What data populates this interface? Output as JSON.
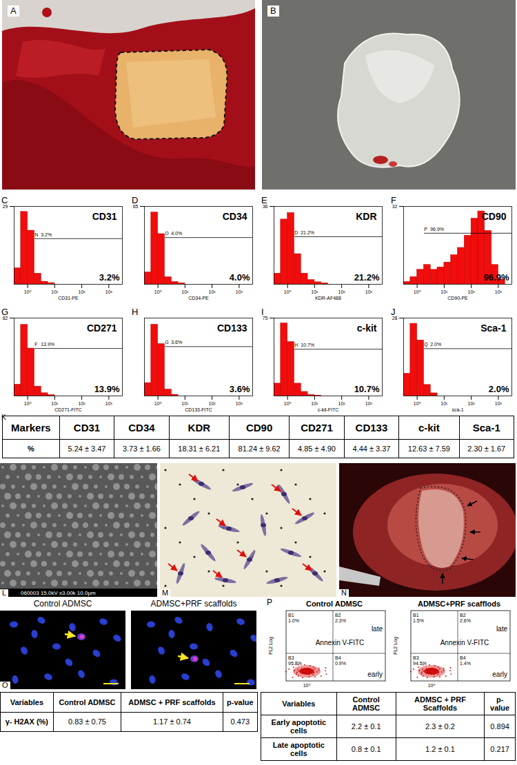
{
  "panels": {
    "A": "A",
    "B": "B",
    "K": "K"
  },
  "chart_data": [
    {
      "type": "histogram",
      "panel": "C",
      "title": "CD31",
      "x_label": "CD31-PE",
      "color": "#f20d0d",
      "log": "x",
      "xlim": [
        0.316,
        3162
      ],
      "xticks": [
        {
          "value": 1,
          "label": "10⁰"
        },
        {
          "value": 10,
          "label": "10¹"
        },
        {
          "value": 100,
          "label": "10²"
        },
        {
          "value": 1000,
          "label": "10³"
        }
      ],
      "ylim": [
        0,
        29
      ],
      "yticks": [
        29
      ],
      "bins": [
        0.316,
        0.562,
        1,
        1.78,
        3.16,
        5.62,
        10,
        17.8,
        31.6,
        56.2,
        100,
        178,
        316,
        562,
        1000,
        1780,
        3162
      ],
      "counts": [
        6,
        27,
        20,
        4,
        1,
        0.5,
        0,
        0,
        0,
        0,
        0,
        0,
        0,
        0,
        0,
        0
      ],
      "gate": {
        "name": "N",
        "label": "3.2%",
        "start": 1.8,
        "level": 17
      },
      "percent_label": "3.2%"
    },
    {
      "type": "histogram",
      "panel": "D",
      "title": "CD34",
      "x_label": "CD34-PE",
      "color": "#f20d0d",
      "log": "x",
      "xlim": [
        0.316,
        3162
      ],
      "xticks": [
        {
          "value": 1,
          "label": "10⁰"
        },
        {
          "value": 10,
          "label": "10¹"
        },
        {
          "value": 100,
          "label": "10²"
        },
        {
          "value": 1000,
          "label": "10³"
        }
      ],
      "ylim": [
        0,
        65
      ],
      "yticks": [
        65
      ],
      "bins": [
        0.316,
        0.562,
        1,
        1.78,
        3.16,
        5.62,
        10,
        17.8,
        31.6,
        56.2,
        100,
        178,
        316,
        562,
        1000,
        1780,
        3162
      ],
      "counts": [
        10,
        60,
        42,
        6,
        2,
        1,
        0,
        0,
        0,
        0,
        0,
        0,
        0,
        0,
        0,
        0
      ],
      "gate": {
        "name": "O",
        "label": "4.0%",
        "start": 1.8,
        "level": 39
      },
      "percent_label": "4.0%"
    },
    {
      "type": "histogram",
      "panel": "E",
      "title": "KDR",
      "x_label": "KDR-AF488",
      "color": "#f20d0d",
      "log": "x",
      "xlim": [
        0.316,
        3162
      ],
      "xticks": [
        {
          "value": 1,
          "label": "10⁰"
        },
        {
          "value": 10,
          "label": "10¹"
        },
        {
          "value": 100,
          "label": "10²"
        },
        {
          "value": 1000,
          "label": "10³"
        }
      ],
      "ylim": [
        0,
        36
      ],
      "yticks": [
        36
      ],
      "bins": [
        0.316,
        0.562,
        1,
        1.78,
        3.16,
        5.62,
        10,
        17.8,
        31.6,
        56.2,
        100,
        178,
        316,
        562,
        1000,
        1780,
        3162
      ],
      "counts": [
        5,
        30,
        33,
        14,
        5,
        2,
        1,
        0.5,
        0,
        0,
        0,
        0,
        0,
        0,
        0,
        0
      ],
      "gate": {
        "name": "D",
        "label": "21.2%",
        "start": 1.8,
        "level": 22
      },
      "percent_label": "21.2%"
    },
    {
      "type": "histogram",
      "panel": "F",
      "title": "CD90",
      "x_label": "CD90-PE",
      "color": "#f20d0d",
      "log": "x",
      "xlim": [
        0.316,
        3162
      ],
      "xticks": [
        {
          "value": 1,
          "label": "10⁰"
        },
        {
          "value": 10,
          "label": "10¹"
        },
        {
          "value": 100,
          "label": "10²"
        },
        {
          "value": 1000,
          "label": "10³"
        }
      ],
      "ylim": [
        0,
        32
      ],
      "yticks": [
        32
      ],
      "bins": [
        0.316,
        0.562,
        1,
        1.78,
        3.16,
        5.62,
        10,
        17.8,
        31.6,
        56.2,
        100,
        178,
        316,
        562,
        1000,
        1780,
        3162
      ],
      "counts": [
        1,
        3,
        6,
        8,
        6,
        7,
        9,
        12,
        15,
        20,
        27,
        30,
        22,
        8,
        2,
        0
      ],
      "gate": {
        "name": "P",
        "label": "96.9%",
        "start": 1.8,
        "level": 21
      },
      "percent_label": "96.9%"
    },
    {
      "type": "histogram",
      "panel": "G",
      "title": "CD271",
      "x_label": "CD271-FITC",
      "color": "#f20d0d",
      "log": "x",
      "xlim": [
        0.316,
        3162
      ],
      "xticks": [
        {
          "value": 1,
          "label": "10⁰"
        },
        {
          "value": 10,
          "label": "10¹"
        },
        {
          "value": 100,
          "label": "10²"
        },
        {
          "value": 1000,
          "label": "10³"
        }
      ],
      "ylim": [
        0,
        82
      ],
      "yticks": [
        82
      ],
      "bins": [
        0.316,
        0.562,
        1,
        1.78,
        3.16,
        5.62,
        10,
        17.8,
        31.6,
        56.2,
        100,
        178,
        316,
        562,
        1000,
        1780,
        3162
      ],
      "counts": [
        12,
        75,
        50,
        10,
        3,
        1,
        0,
        0,
        0,
        0,
        0,
        0,
        0,
        0,
        0,
        0
      ],
      "gate": {
        "name": "F",
        "label": "13.9%",
        "start": 1.8,
        "level": 50
      },
      "percent_label": "13.9%"
    },
    {
      "type": "histogram",
      "panel": "H",
      "title": "CD133",
      "x_label": "CD133-FITC",
      "color": "#f20d0d",
      "log": "x",
      "xlim": [
        0.316,
        3162
      ],
      "xticks": [
        {
          "value": 1,
          "label": "10⁰"
        },
        {
          "value": 10,
          "label": "10¹"
        },
        {
          "value": 100,
          "label": "10²"
        },
        {
          "value": 1000,
          "label": "10³"
        }
      ],
      "ylim": [
        0,
        60
      ],
      "yticks": [],
      "bins": [
        0.316,
        0.562,
        1,
        1.78,
        3.16,
        5.62,
        10,
        17.8,
        31.6,
        56.2,
        100,
        178,
        316,
        562,
        1000,
        1780,
        3162
      ],
      "counts": [
        10,
        55,
        40,
        5,
        1,
        0,
        0,
        0,
        0,
        0,
        0,
        0,
        0,
        0,
        0,
        0
      ],
      "gate": {
        "name": "G",
        "label": "3.6%",
        "start": 1.8,
        "level": 38
      },
      "percent_label": "3.6%"
    },
    {
      "type": "histogram",
      "panel": "I",
      "title": "c-kit",
      "x_label": "c-kit-FITC",
      "color": "#f20d0d",
      "log": "x",
      "xlim": [
        0.316,
        3162
      ],
      "xticks": [
        {
          "value": 1,
          "label": "10⁰"
        },
        {
          "value": 10,
          "label": "10¹"
        },
        {
          "value": 100,
          "label": "10²"
        },
        {
          "value": 1000,
          "label": "10³"
        }
      ],
      "ylim": [
        0,
        75
      ],
      "yticks": [
        75
      ],
      "bins": [
        0.316,
        0.562,
        1,
        1.78,
        3.16,
        5.62,
        10,
        17.8,
        31.6,
        56.2,
        100,
        178,
        316,
        562,
        1000,
        1780,
        3162
      ],
      "counts": [
        12,
        70,
        52,
        12,
        4,
        1,
        0.5,
        0,
        0,
        0,
        0,
        0,
        0,
        0,
        0,
        0
      ],
      "gate": {
        "name": "H",
        "label": "10.7%",
        "start": 1.8,
        "level": 45
      },
      "percent_label": "10.7%"
    },
    {
      "type": "histogram",
      "panel": "J",
      "title": "Sca-1",
      "x_label": "sca-1",
      "color": "#f20d0d",
      "log": "x",
      "xlim": [
        0.316,
        3162
      ],
      "xticks": [
        {
          "value": 1,
          "label": "10⁰"
        },
        {
          "value": 10,
          "label": "10¹"
        },
        {
          "value": 100,
          "label": "10²"
        },
        {
          "value": 1000,
          "label": "10³"
        }
      ],
      "ylim": [
        0,
        28
      ],
      "yticks": [
        28
      ],
      "bins": [
        0.316,
        0.562,
        1,
        1.78,
        3.16,
        5.62,
        10,
        17.8,
        31.6,
        56.2,
        100,
        178,
        316,
        562,
        1000,
        1780,
        3162
      ],
      "counts": [
        8,
        26,
        20,
        4,
        1,
        0,
        0,
        0,
        0,
        0,
        0,
        0,
        0,
        0,
        0,
        0
      ],
      "gate": {
        "name": "Q",
        "label": "2.0%",
        "start": 1.8,
        "level": 17
      },
      "percent_label": "2.0%"
    }
  ],
  "table_K": {
    "header": [
      "Markers",
      "CD31",
      "CD34",
      "KDR",
      "CD90",
      "CD271",
      "CD133",
      "c-kit",
      "Sca-1"
    ],
    "row": [
      "%",
      "5.24 ± 3.47",
      "3.73 ± 1.66",
      "18.31 ± 6.21",
      "81.24 ± 9.62",
      "4.85 ± 4.90",
      "4.44 ± 3.37",
      "12.63 ± 7.59",
      "2.30 ± 1.67"
    ]
  },
  "panel_L": {
    "letter": "L",
    "caption": "060003 15.0kV x3.00k 10.0µm"
  },
  "panel_M": {
    "letter": "M"
  },
  "panel_N": {
    "letter": "N"
  },
  "panel_O": {
    "letter": "O",
    "images": [
      "Control ADMSC",
      "ADMSC+PRF scaffolds"
    ],
    "table": {
      "header": [
        "Variables",
        "Control ADMSC",
        "ADMSC + PRF scaffolds",
        "p-value"
      ],
      "rows": [
        [
          "γ- H2AX (%)",
          "0.83 ± 0.75",
          "1.17 ± 0.74",
          "0.473"
        ]
      ]
    }
  },
  "panel_P": {
    "letter": "P",
    "x_label": "Annexin V-FITC",
    "y_label": "FL2 Log",
    "tick_label": "10⁰",
    "late": "late",
    "early": "early",
    "plots": [
      {
        "title": "Control ADMSC",
        "quadrants": [
          {
            "name": "B1",
            "label": "1.0%"
          },
          {
            "name": "B2",
            "label": "2.3%"
          },
          {
            "name": "B3",
            "label": "95.8%"
          },
          {
            "name": "B4",
            "label": "0.9%"
          }
        ]
      },
      {
        "title": "ADMSC+PRF scafflods",
        "quadrants": [
          {
            "name": "B1",
            "label": "1.5%"
          },
          {
            "name": "B2",
            "label": "2.6%"
          },
          {
            "name": "B3",
            "label": "94.5%"
          },
          {
            "name": "B4",
            "label": "1.4%"
          }
        ]
      }
    ],
    "table": {
      "header": [
        "Variables",
        "Control ADMSC",
        "ADMSC + PRF Scaffolds",
        "p-value"
      ],
      "rows": [
        [
          "Early apoptotic cells",
          "2.2 ± 0.1",
          "2.3 ± 0.2",
          "0.894"
        ],
        [
          "Late apoptotic cells",
          "0.8 ± 0.1",
          "1.2 ± 0.1",
          "0.217"
        ]
      ]
    }
  }
}
